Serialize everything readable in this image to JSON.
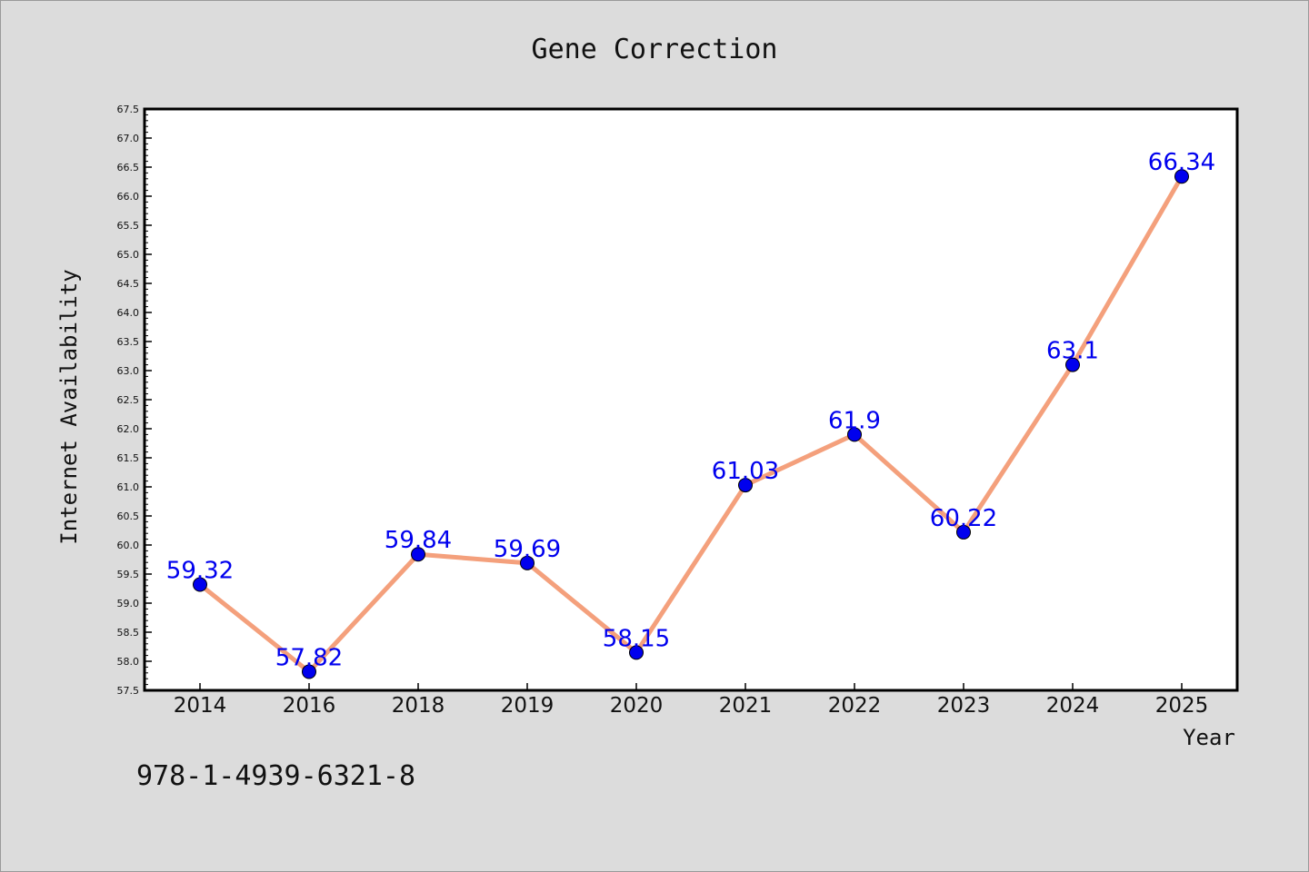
{
  "chart_data": {
    "type": "line",
    "title": "Gene Correction",
    "xlabel": "Year",
    "ylabel": "Internet Availability",
    "categories": [
      "2014",
      "2016",
      "2018",
      "2019",
      "2020",
      "2021",
      "2022",
      "2023",
      "2024",
      "2025"
    ],
    "series": [
      {
        "values": [
          59.32,
          57.82,
          59.84,
          59.69,
          58.15,
          61.03,
          61.9,
          60.22,
          63.1,
          66.34
        ]
      }
    ],
    "data_labels": [
      "59.32",
      "57.82",
      "59.84",
      "59.69",
      "58.15",
      "61.03",
      "61.9",
      "60.22",
      "63.1",
      "66.34"
    ],
    "ylim": [
      57.5,
      67.5
    ],
    "ytick_step": 0.5,
    "grid": false,
    "line_color": "#f4a07c",
    "marker_color": "#0000ee",
    "label_color": "#0000ee"
  },
  "footer": {
    "isbn": "978-1-4939-6321-8"
  }
}
